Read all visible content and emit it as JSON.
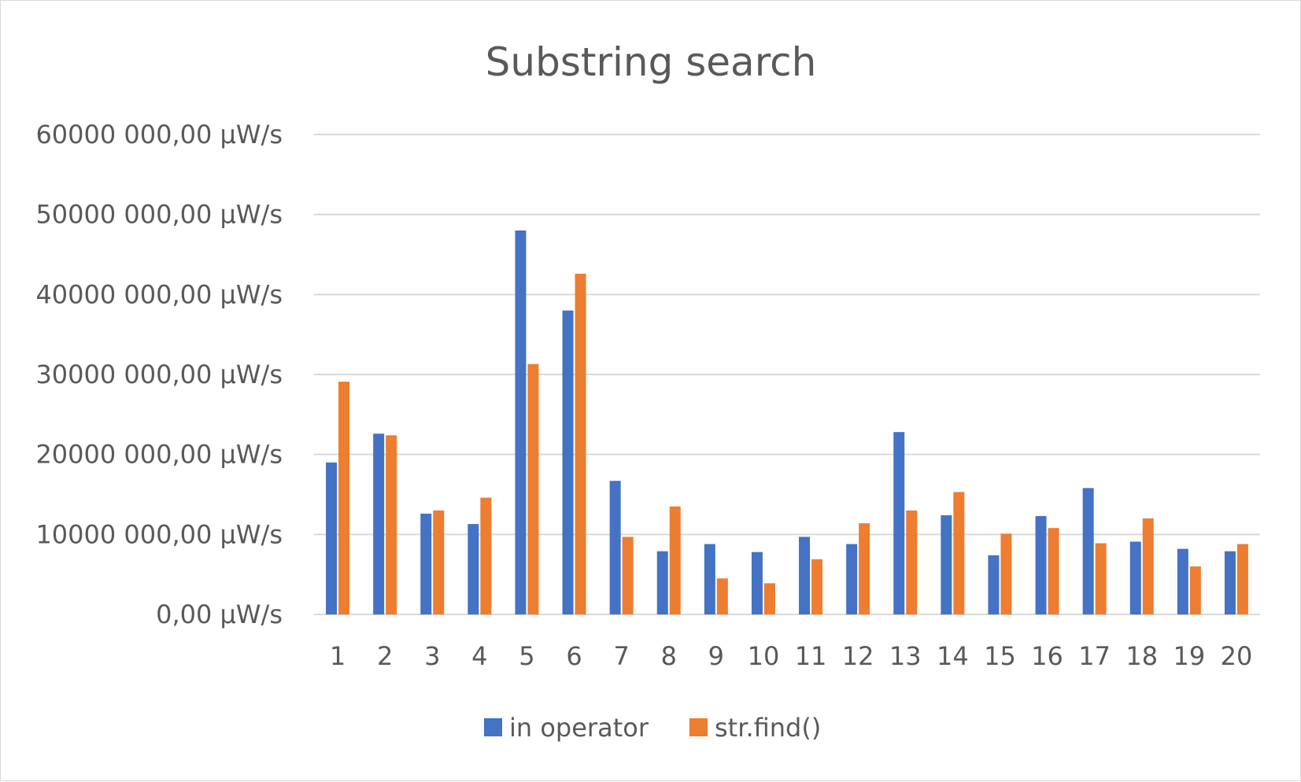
{
  "chart_data": {
    "type": "bar",
    "title": "Substring search",
    "xlabel": "",
    "ylabel": "",
    "categories": [
      "1",
      "2",
      "3",
      "4",
      "5",
      "6",
      "7",
      "8",
      "9",
      "10",
      "11",
      "12",
      "13",
      "14",
      "15",
      "16",
      "17",
      "18",
      "19",
      "20"
    ],
    "series": [
      {
        "name": "in operator",
        "color": "#4472c4",
        "values": [
          19000000,
          22600000,
          12600000,
          11300000,
          48000000,
          38000000,
          16700000,
          7900000,
          8800000,
          7800000,
          9700000,
          8800000,
          22800000,
          12400000,
          7400000,
          12300000,
          15800000,
          9100000,
          8200000,
          7900000
        ]
      },
      {
        "name": "str.find()",
        "color": "#ed7d31",
        "values": [
          29100000,
          22400000,
          13000000,
          14600000,
          31300000,
          42600000,
          9700000,
          13500000,
          4500000,
          3900000,
          6900000,
          11400000,
          13000000,
          15300000,
          10100000,
          10800000,
          8900000,
          12000000,
          6000000,
          8800000
        ]
      }
    ],
    "ylim": [
      0,
      60000000
    ],
    "yticks": [
      0,
      10000000,
      20000000,
      30000000,
      40000000,
      50000000,
      60000000
    ],
    "ytick_labels": [
      "0,00 µW/s",
      "10000 000,00 µW/s",
      "20000 000,00 µW/s",
      "30000 000,00 µW/s",
      "40000 000,00 µW/s",
      "50000 000,00 µW/s",
      "60000 000,00 µW/s"
    ],
    "grid": true,
    "gridline_color": "#d9d9d9",
    "legend_position": "bottom"
  }
}
